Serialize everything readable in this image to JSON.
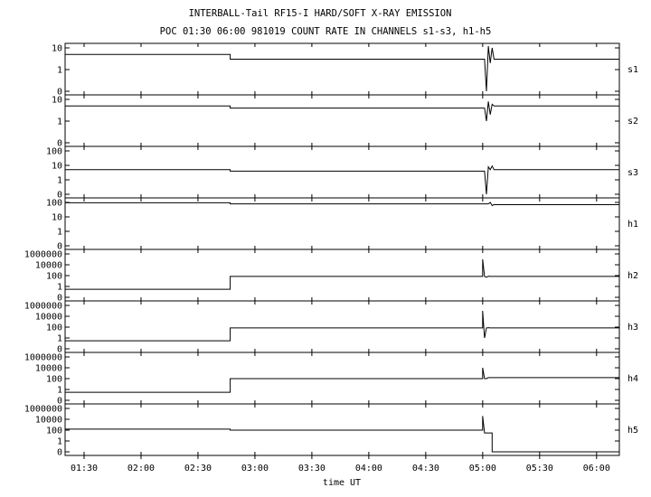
{
  "chart_data": {
    "type": "line",
    "title": "INTERBALL-Tail RF15-I HARD/SOFT X-RAY EMISSION",
    "subtitle": "POC 01:30 06:00 981019  COUNT RATE IN CHANNELS s1-s3, h1-h5",
    "xlabel": "time UT",
    "x_ticks": [
      "01:30",
      "02:00",
      "02:30",
      "03:00",
      "03:30",
      "04:00",
      "04:30",
      "05:00",
      "05:30",
      "06:00"
    ],
    "x_range": [
      "01:20",
      "06:12"
    ],
    "grid": false,
    "panels": [
      {
        "name": "s1",
        "y_ticks": [
          "0",
          "1",
          "10"
        ],
        "series": [
          {
            "x": [
              "01:20",
              "02:47",
              "02:47",
              "05:01",
              "05:02",
              "05:03",
              "05:04",
              "05:05",
              "05:06",
              "06:12"
            ],
            "y": [
              5,
              5,
              3,
              3,
              0,
              12,
              2,
              10,
              3,
              3
            ]
          }
        ]
      },
      {
        "name": "s2",
        "y_ticks": [
          "0",
          "1",
          "10"
        ],
        "series": [
          {
            "x": [
              "01:20",
              "02:47",
              "02:47",
              "05:01",
              "05:02",
              "05:03",
              "05:04",
              "05:05",
              "05:06",
              "06:12"
            ],
            "y": [
              5,
              5,
              4,
              4,
              1,
              8,
              2,
              6,
              5,
              5
            ]
          }
        ]
      },
      {
        "name": "s3",
        "y_ticks": [
          "0",
          "1",
          "10",
          "100"
        ],
        "series": [
          {
            "x": [
              "01:20",
              "02:47",
              "02:47",
              "05:01",
              "05:02",
              "05:03",
              "05:04",
              "05:05",
              "05:06",
              "06:12"
            ],
            "y": [
              5,
              5,
              4,
              4,
              0,
              8,
              5,
              9,
              5,
              5
            ]
          }
        ]
      },
      {
        "name": "h1",
        "y_ticks": [
          "0",
          "1",
          "10",
          "100"
        ],
        "series": [
          {
            "x": [
              "01:20",
              "02:47",
              "02:47",
              "05:03",
              "05:04",
              "05:05",
              "05:06",
              "06:12"
            ],
            "y": [
              95,
              95,
              80,
              80,
              100,
              60,
              70,
              70
            ]
          }
        ]
      },
      {
        "name": "h2",
        "y_ticks": [
          "0",
          "1",
          "100",
          "10000",
          "1000000"
        ],
        "series": [
          {
            "x": [
              "01:20",
              "02:47",
              "02:47",
              "05:00",
              "05:00",
              "05:01",
              "05:02",
              "05:03",
              "05:04",
              "06:12"
            ],
            "y": [
              0.3,
              0.3,
              70,
              70,
              100000,
              70,
              50,
              80,
              70,
              70
            ]
          }
        ]
      },
      {
        "name": "h3",
        "y_ticks": [
          "0",
          "1",
          "100",
          "10000",
          "1000000"
        ],
        "series": [
          {
            "x": [
              "01:20",
              "02:47",
              "02:47",
              "05:00",
              "05:00",
              "05:01",
              "05:02",
              "05:03",
              "05:04",
              "06:12"
            ],
            "y": [
              0.3,
              0.3,
              70,
              70,
              100000,
              1,
              70,
              80,
              70,
              70
            ]
          }
        ]
      },
      {
        "name": "h4",
        "y_ticks": [
          "0",
          "1",
          "100",
          "10000",
          "1000000"
        ],
        "series": [
          {
            "x": [
              "01:20",
              "02:47",
              "02:47",
              "05:00",
              "05:00",
              "05:01",
              "05:02",
              "05:03",
              "05:04",
              "06:12"
            ],
            "y": [
              0.3,
              0.3,
              100,
              100,
              10000,
              100,
              100,
              150,
              150,
              150
            ]
          }
        ]
      },
      {
        "name": "h5",
        "y_ticks": [
          "0",
          "1",
          "100",
          "10000",
          "1000000"
        ],
        "series": [
          {
            "x": [
              "01:20",
              "02:47",
              "02:47",
              "05:00",
              "05:00",
              "05:01",
              "05:03",
              "05:05",
              "05:05",
              "06:12"
            ],
            "y": [
              150,
              150,
              100,
              100,
              40000,
              30,
              30,
              30,
              0,
              0
            ]
          }
        ]
      }
    ]
  }
}
